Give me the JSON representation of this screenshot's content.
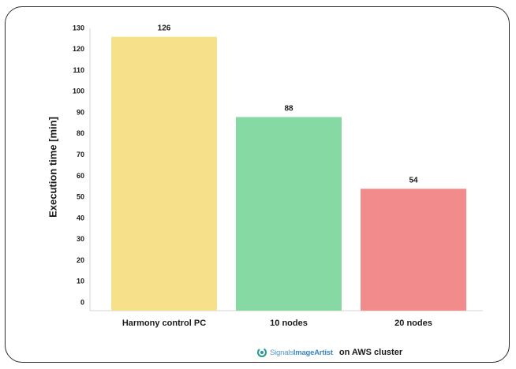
{
  "chart_data": {
    "type": "bar",
    "categories": [
      "Harmony control PC",
      "10 nodes",
      "20 nodes"
    ],
    "values": [
      126,
      88,
      54
    ],
    "data_labels": [
      "126",
      "88",
      "54"
    ],
    "ylabel": "Execution time [min]",
    "xlabel": "",
    "title": "",
    "ylim": [
      0,
      130
    ],
    "yticks": [
      0,
      10,
      20,
      30,
      40,
      50,
      60,
      70,
      80,
      90,
      100,
      110,
      120,
      130
    ],
    "bar_colors": [
      "#f6e08a",
      "#86d9a3",
      "#f28b8b"
    ],
    "grid": false
  },
  "footer": {
    "brand_part1": "Signals",
    "brand_part2": "ImageArtist",
    "note": "on AWS cluster",
    "logo_icon": "signals-image-artist-logo-icon",
    "logo_colors": [
      "#2aa58a",
      "#3a86c2"
    ]
  }
}
